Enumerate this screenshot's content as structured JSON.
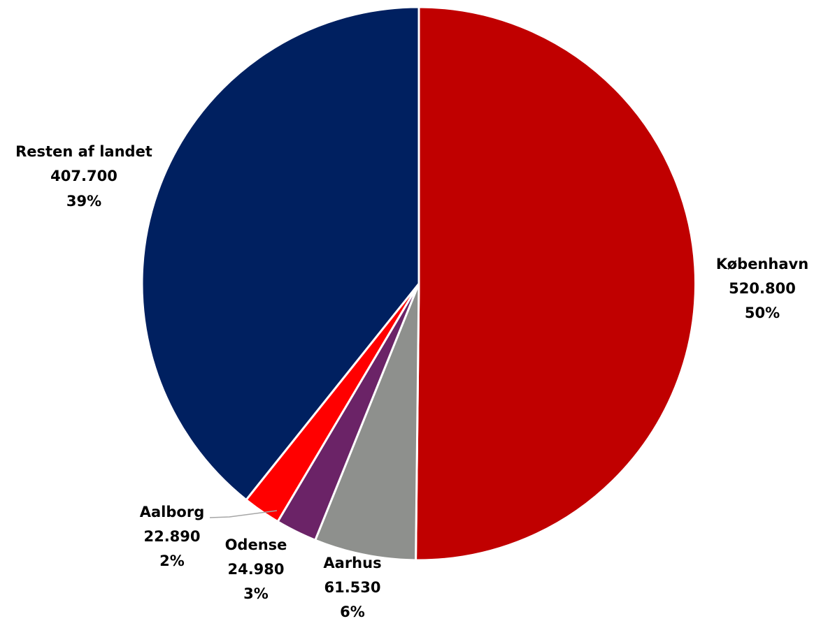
{
  "chart_data": {
    "type": "pie",
    "title": "",
    "start_angle_deg": 0,
    "direction": "clockwise",
    "slices": [
      {
        "name": "København",
        "value_label": "520.800",
        "value": 520800,
        "percent_label": "50%",
        "color": "#c00000"
      },
      {
        "name": "Aarhus",
        "value_label": "61.530",
        "value": 61530,
        "percent_label": "6%",
        "color": "#8e908d"
      },
      {
        "name": "Odense",
        "value_label": "24.980",
        "value": 24980,
        "percent_label": "3%",
        "color": "#6b2367"
      },
      {
        "name": "Aalborg",
        "value_label": "22.890",
        "value": 22890,
        "percent_label": "2%",
        "color": "#ff0000"
      },
      {
        "name": "Resten af landet",
        "value_label": "407.700",
        "value": 407700,
        "percent_label": "39%",
        "color": "#002060"
      }
    ],
    "legend": "none",
    "data_labels": "outside"
  }
}
